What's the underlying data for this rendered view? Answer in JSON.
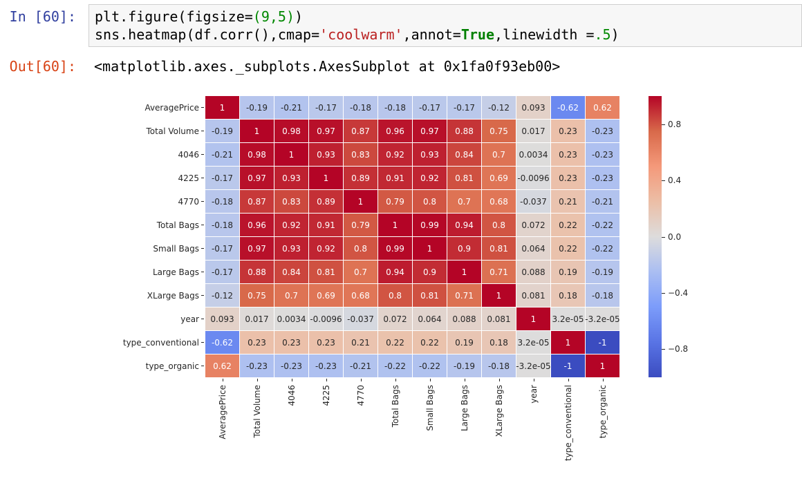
{
  "notebook": {
    "in_prompt": "In [60]:",
    "out_prompt": "Out[60]:",
    "code_lines": [
      [
        [
          "p",
          "plt.figure(figsize="
        ],
        [
          "n",
          "(9,5)"
        ],
        [
          "p",
          ")"
        ]
      ],
      [
        [
          "p",
          "sns.heatmap(df.corr(),cmap="
        ],
        [
          "s",
          "'coolwarm'"
        ],
        [
          "p",
          ",annot="
        ],
        [
          "k",
          "True"
        ],
        [
          "p",
          ",linewidth ="
        ],
        [
          "n",
          ".5"
        ],
        [
          "p",
          ")"
        ]
      ]
    ],
    "output_text": "<matplotlib.axes._subplots.AxesSubplot at 0x1fa0f93eb00>"
  },
  "colors": {
    "in_prompt": "#303F9F",
    "out_prompt": "#D84315",
    "cell_bg": "#F7F7F7",
    "cell_border": "#CFCFCF",
    "annot_dark_text": "#262626",
    "annot_light_text": "#FFFFFF"
  },
  "chart_data": {
    "type": "heatmap",
    "title": "",
    "colormap": "coolwarm",
    "vmin": -1,
    "vmax": 1,
    "grid": "linewidth 0.5 white",
    "legend_position": "right colorbar",
    "labels": [
      "AveragePrice",
      "Total Volume",
      "4046",
      "4225",
      "4770",
      "Total Bags",
      "Small Bags",
      "Large Bags",
      "XLarge Bags",
      "year",
      "type_conventional",
      "type_organic"
    ],
    "matrix": [
      [
        "1",
        "-0.19",
        "-0.21",
        "-0.17",
        "-0.18",
        "-0.18",
        "-0.17",
        "-0.17",
        "-0.12",
        "0.093",
        "-0.62",
        "0.62"
      ],
      [
        "-0.19",
        "1",
        "0.98",
        "0.97",
        "0.87",
        "0.96",
        "0.97",
        "0.88",
        "0.75",
        "0.017",
        "0.23",
        "-0.23"
      ],
      [
        "-0.21",
        "0.98",
        "1",
        "0.93",
        "0.83",
        "0.92",
        "0.93",
        "0.84",
        "0.7",
        "0.0034",
        "0.23",
        "-0.23"
      ],
      [
        "-0.17",
        "0.97",
        "0.93",
        "1",
        "0.89",
        "0.91",
        "0.92",
        "0.81",
        "0.69",
        "-0.0096",
        "0.23",
        "-0.23"
      ],
      [
        "-0.18",
        "0.87",
        "0.83",
        "0.89",
        "1",
        "0.79",
        "0.8",
        "0.7",
        "0.68",
        "-0.037",
        "0.21",
        "-0.21"
      ],
      [
        "-0.18",
        "0.96",
        "0.92",
        "0.91",
        "0.79",
        "1",
        "0.99",
        "0.94",
        "0.8",
        "0.072",
        "0.22",
        "-0.22"
      ],
      [
        "-0.17",
        "0.97",
        "0.93",
        "0.92",
        "0.8",
        "0.99",
        "1",
        "0.9",
        "0.81",
        "0.064",
        "0.22",
        "-0.22"
      ],
      [
        "-0.17",
        "0.88",
        "0.84",
        "0.81",
        "0.7",
        "0.94",
        "0.9",
        "1",
        "0.71",
        "0.088",
        "0.19",
        "-0.19"
      ],
      [
        "-0.12",
        "0.75",
        "0.7",
        "0.69",
        "0.68",
        "0.8",
        "0.81",
        "0.71",
        "1",
        "0.081",
        "0.18",
        "-0.18"
      ],
      [
        "0.093",
        "0.017",
        "0.0034",
        "-0.0096",
        "-0.037",
        "0.072",
        "0.064",
        "0.088",
        "0.081",
        "1",
        "3.2e-05",
        "-3.2e-05"
      ],
      [
        "-0.62",
        "0.23",
        "0.23",
        "0.23",
        "0.21",
        "0.22",
        "0.22",
        "0.19",
        "0.18",
        "3.2e-05",
        "1",
        "-1"
      ],
      [
        "0.62",
        "-0.23",
        "-0.23",
        "-0.23",
        "-0.21",
        "-0.22",
        "-0.22",
        "-0.19",
        "-0.18",
        "-3.2e-05",
        "-1",
        "1"
      ]
    ],
    "colorbar_ticks": [
      "0.8",
      "0.4",
      "0.0",
      "−0.4",
      "−0.8"
    ],
    "colorbar_tick_values": [
      0.8,
      0.4,
      0.0,
      -0.4,
      -0.8
    ],
    "colormap_stops": [
      [
        59,
        76,
        192
      ],
      [
        89,
        116,
        229
      ],
      [
        124,
        156,
        250
      ],
      [
        170,
        190,
        242
      ],
      [
        221,
        220,
        220
      ],
      [
        236,
        190,
        166
      ],
      [
        244,
        153,
        122
      ],
      [
        216,
        105,
        74
      ],
      [
        180,
        4,
        38
      ]
    ]
  }
}
